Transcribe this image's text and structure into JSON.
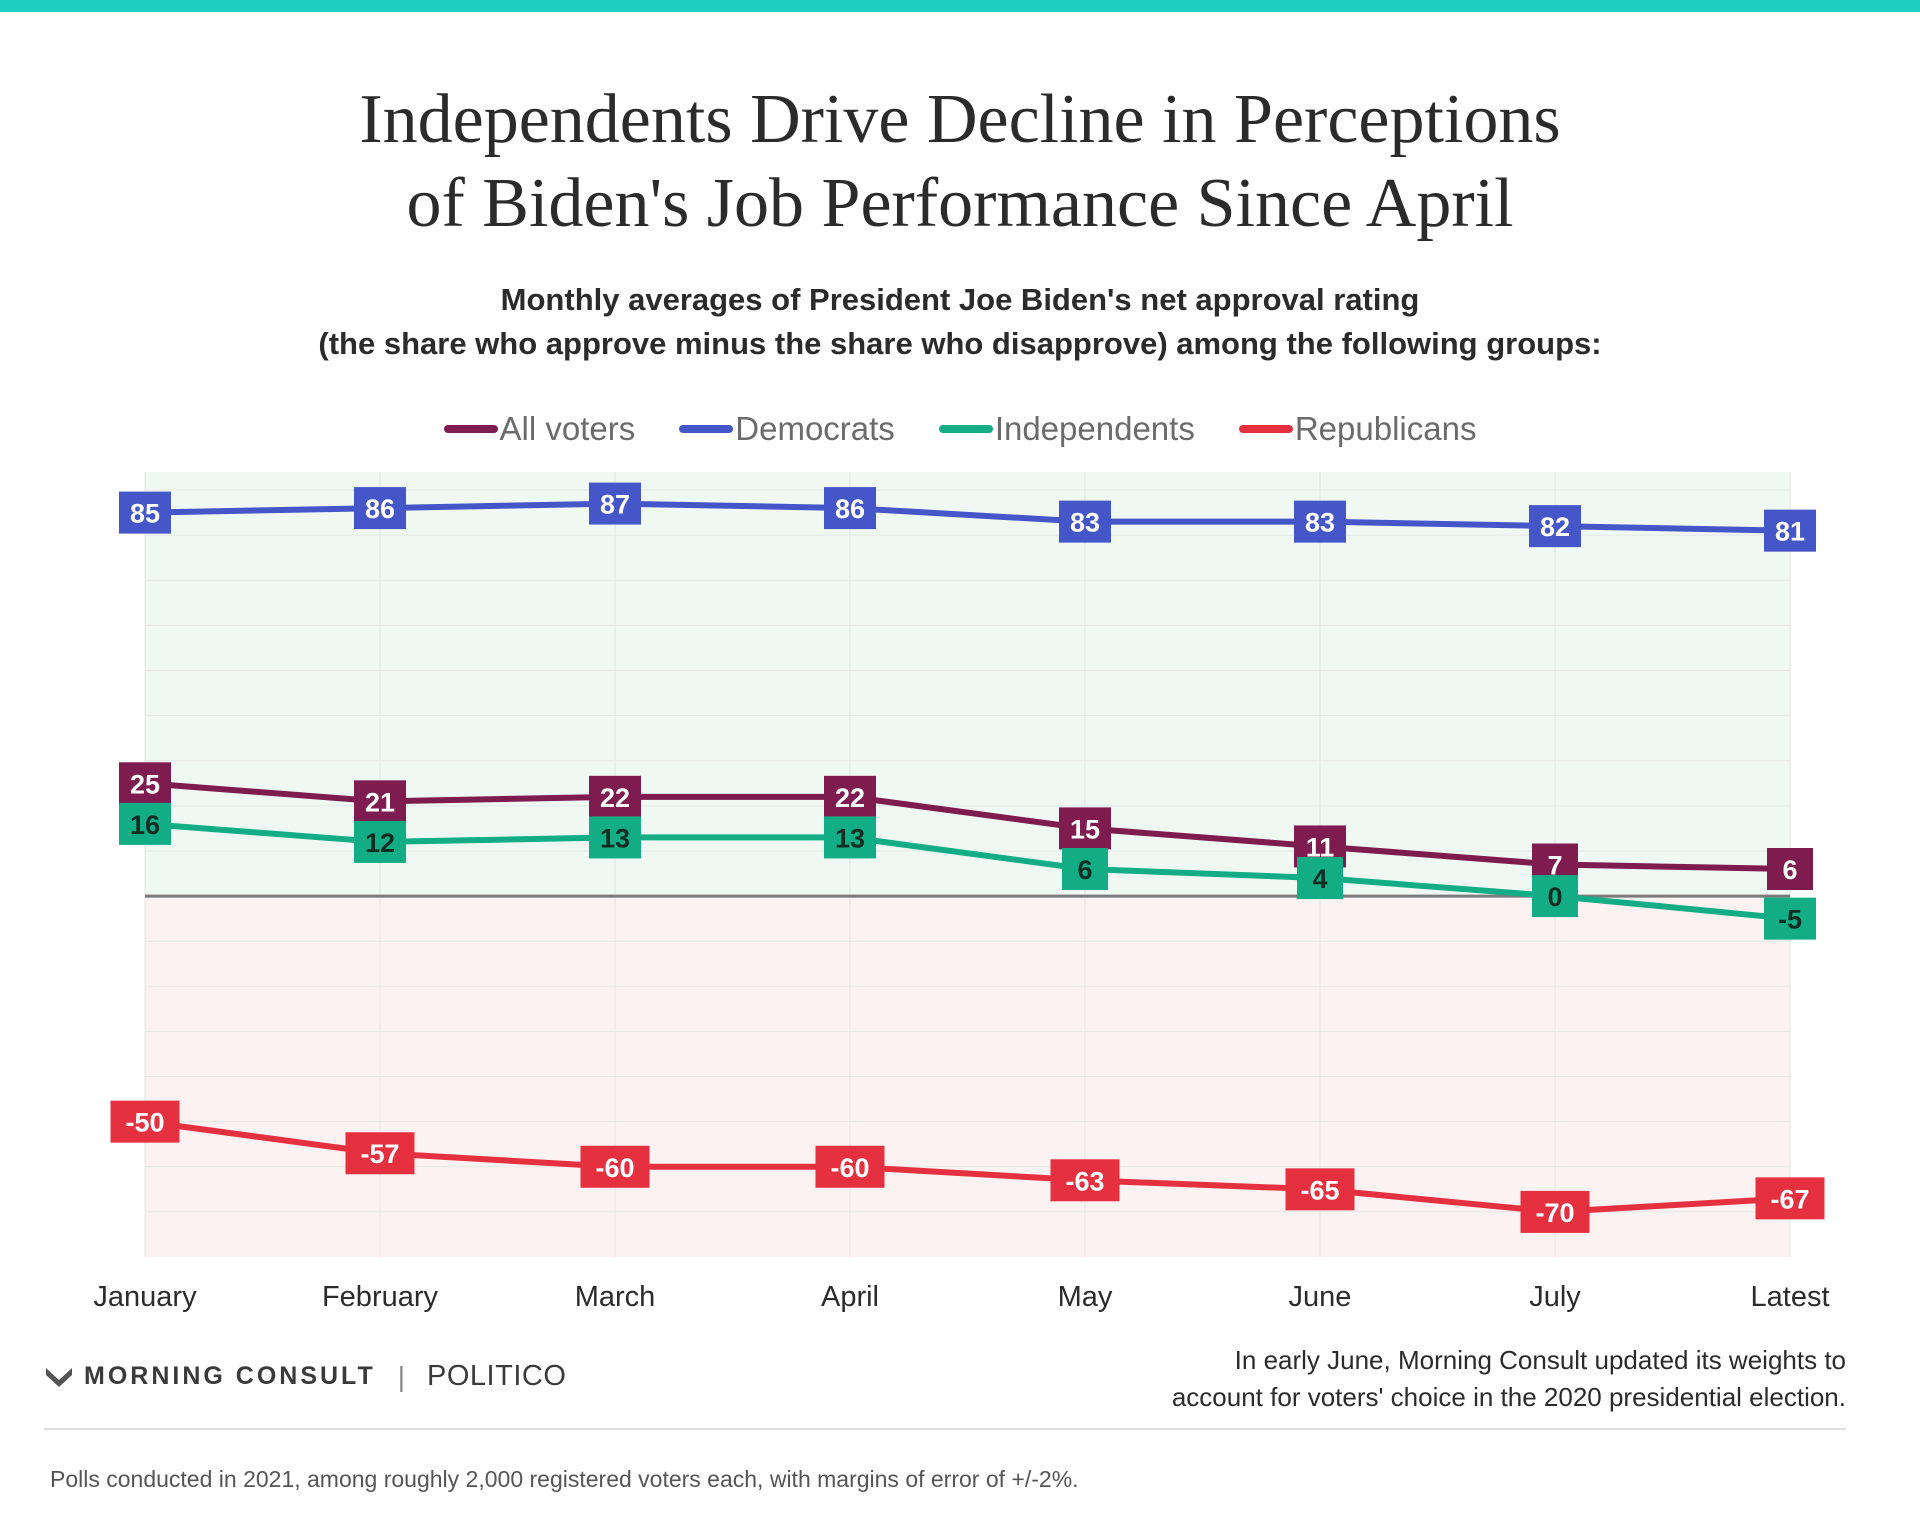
{
  "title_line1": "Independents Drive Decline in Perceptions",
  "title_line2": "of Biden's Job Performance Since April",
  "subtitle_line1": "Monthly averages of President Joe Biden's net approval rating",
  "subtitle_line2": "(the share who approve minus the share who disapprove) among the following groups:",
  "legend": [
    {
      "name": "All voters",
      "color": "#7e1b4f"
    },
    {
      "name": "Democrats",
      "color": "#4556c8"
    },
    {
      "name": "Independents",
      "color": "#13ad85"
    },
    {
      "name": "Republicans",
      "color": "#e5303f"
    }
  ],
  "chart_data": {
    "type": "line",
    "categories": [
      "January",
      "February",
      "March",
      "April",
      "May",
      "June",
      "July",
      "Latest"
    ],
    "ylim": [
      -80,
      94
    ],
    "grid": true,
    "legend_position": "top-center",
    "series": [
      {
        "name": "Democrats",
        "color": "#4556c8",
        "values": [
          85,
          86,
          87,
          86,
          83,
          83,
          82,
          81
        ]
      },
      {
        "name": "All voters",
        "color": "#7e1b4f",
        "values": [
          25,
          21,
          22,
          22,
          15,
          11,
          7,
          6
        ]
      },
      {
        "name": "Independents",
        "color": "#13ad85",
        "values": [
          16,
          12,
          13,
          13,
          6,
          4,
          0,
          -5
        ]
      },
      {
        "name": "Republicans",
        "color": "#e5303f",
        "values": [
          -50,
          -57,
          -60,
          -60,
          -63,
          -65,
          -70,
          -67
        ]
      }
    ]
  },
  "logo": {
    "left": "MORNING CONSULT",
    "right": "POLITICO"
  },
  "note_line1": "In early June, Morning Consult updated its weights to",
  "note_line2": "account for voters' choice in the 2020 presidential election.",
  "footer": "Polls conducted in 2021, among roughly 2,000 registered voters each, with margins of error of +/-2%."
}
